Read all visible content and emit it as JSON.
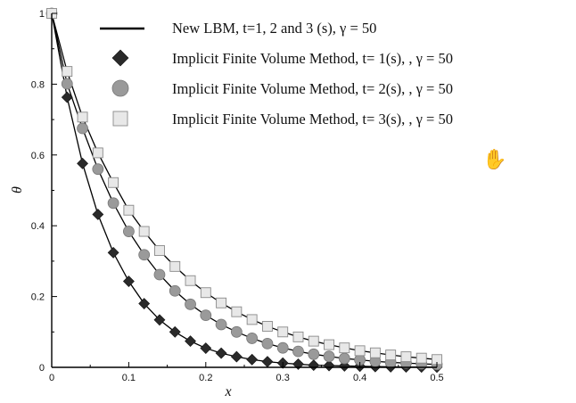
{
  "chart_data": {
    "type": "line",
    "xlabel": "x",
    "ylabel": "θ",
    "xlim": [
      0,
      0.5
    ],
    "ylim": [
      0,
      1
    ],
    "x_ticks": [
      "0",
      "0.1",
      "0.2",
      "0.3",
      "0.4",
      "0.5"
    ],
    "y_ticks": [
      "0",
      "0.2",
      "0.4",
      "0.6",
      "0.8",
      "1"
    ],
    "x": [
      0,
      0.02,
      0.04,
      0.06,
      0.08,
      0.1,
      0.12,
      0.14,
      0.16,
      0.18,
      0.2,
      0.22,
      0.24,
      0.26,
      0.28,
      0.3,
      0.32,
      0.34,
      0.36,
      0.38,
      0.4,
      0.42,
      0.44,
      0.46,
      0.48,
      0.5
    ],
    "series": [
      {
        "name": "New LBM, t=1, 2 and 3 (s), γ = 50",
        "marker": "line",
        "color": "#000000",
        "note": "solid line drawn through each method curve"
      },
      {
        "name": "Implicit Finite Volume Method, t= 1(s), , γ = 50",
        "marker": "diamond",
        "color": "#2a2a2a",
        "values": [
          1.0,
          0.763,
          0.576,
          0.432,
          0.324,
          0.243,
          0.18,
          0.134,
          0.1,
          0.074,
          0.054,
          0.04,
          0.03,
          0.022,
          0.016,
          0.012,
          0.009,
          0.006,
          0.005,
          0.004,
          0.003,
          0.002,
          0.0015,
          0.001,
          0.0008,
          0.0005
        ]
      },
      {
        "name": "Implicit Finite Volume Method, t= 2(s), , γ = 50",
        "marker": "circle",
        "color": "#9a9a9a",
        "values": [
          1.0,
          0.801,
          0.675,
          0.56,
          0.464,
          0.384,
          0.318,
          0.262,
          0.216,
          0.178,
          0.147,
          0.121,
          0.1,
          0.082,
          0.067,
          0.055,
          0.045,
          0.037,
          0.031,
          0.025,
          0.021,
          0.017,
          0.014,
          0.012,
          0.01,
          0.008
        ]
      },
      {
        "name": "Implicit Finite Volume Method, t= 3(s), , γ = 50",
        "marker": "square",
        "color": "#e8e8e8",
        "values": [
          1.0,
          0.836,
          0.707,
          0.606,
          0.522,
          0.444,
          0.384,
          0.33,
          0.285,
          0.245,
          0.211,
          0.182,
          0.157,
          0.135,
          0.116,
          0.1,
          0.086,
          0.074,
          0.064,
          0.055,
          0.047,
          0.041,
          0.035,
          0.03,
          0.026,
          0.022
        ]
      }
    ],
    "legend_position": "top-right"
  },
  "icons": {
    "cursor": "hand-cursor-icon"
  }
}
